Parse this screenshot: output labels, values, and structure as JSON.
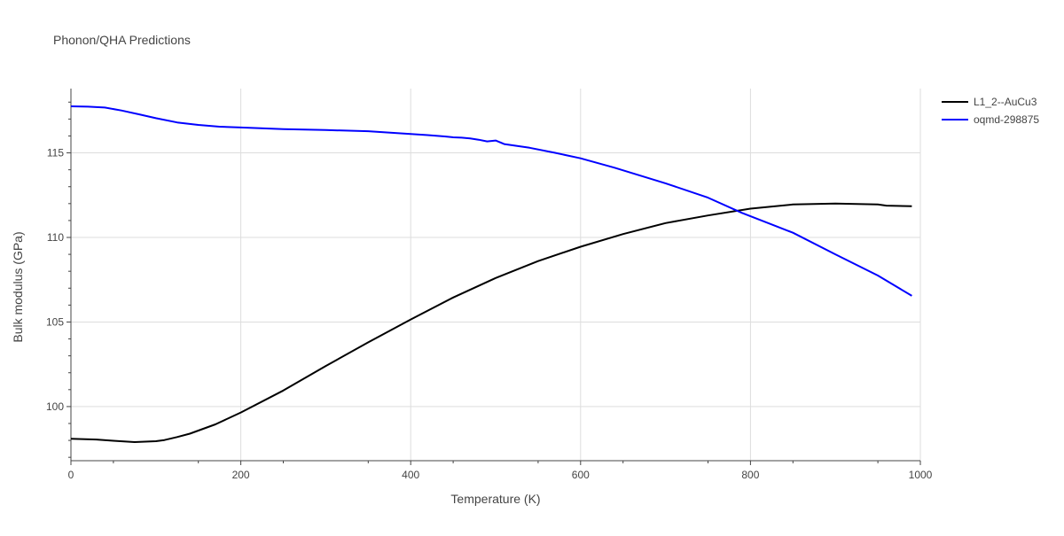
{
  "chart_data": {
    "type": "line",
    "title": "Phonon/QHA Predictions",
    "xlabel": "Temperature (K)",
    "ylabel": "Bulk modulus (GPa)",
    "xlim": [
      0,
      1000
    ],
    "ylim": [
      96.8,
      118.8
    ],
    "xticks": [
      0,
      200,
      400,
      600,
      800,
      1000
    ],
    "yticks": [
      100,
      105,
      110,
      115
    ],
    "grid": true,
    "legend_position": "top-right",
    "series": [
      {
        "name": "L1_2--AuCu3",
        "color": "#000000",
        "x": [
          0,
          30,
          50,
          75,
          100,
          110,
          125,
          140,
          150,
          170,
          200,
          250,
          300,
          350,
          400,
          450,
          500,
          550,
          600,
          650,
          700,
          750,
          800,
          850,
          900,
          950,
          960,
          990
        ],
        "y": [
          98.1,
          98.05,
          97.98,
          97.9,
          97.95,
          98.02,
          98.2,
          98.4,
          98.58,
          98.95,
          99.65,
          100.95,
          102.4,
          103.8,
          105.15,
          106.45,
          107.6,
          108.6,
          109.45,
          110.2,
          110.85,
          111.3,
          111.7,
          111.95,
          112.0,
          111.95,
          111.88,
          111.85
        ]
      },
      {
        "name": "oqmd-298875",
        "color": "#0000ff",
        "x": [
          0,
          20,
          40,
          60,
          80,
          100,
          125,
          150,
          175,
          200,
          250,
          300,
          350,
          400,
          420,
          440,
          450,
          460,
          470,
          480,
          490,
          500,
          510,
          540,
          570,
          600,
          640,
          700,
          750,
          790,
          850,
          900,
          950,
          990
        ],
        "y": [
          117.75,
          117.73,
          117.68,
          117.5,
          117.28,
          117.05,
          116.8,
          116.65,
          116.55,
          116.5,
          116.4,
          116.35,
          116.28,
          116.12,
          116.05,
          115.97,
          115.92,
          115.9,
          115.85,
          115.78,
          115.68,
          115.73,
          115.52,
          115.3,
          115.0,
          114.68,
          114.12,
          113.2,
          112.35,
          111.45,
          110.28,
          109.0,
          107.75,
          106.55
        ]
      }
    ]
  }
}
